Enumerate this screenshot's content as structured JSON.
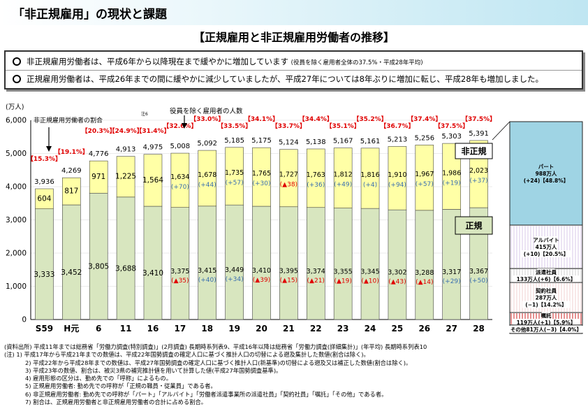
{
  "page_title": "「非正規雇用」の現状と課題",
  "section_title": "【正規雇用と非正規雇用労働者の推移】",
  "summary": [
    {
      "text": "非正規雇用労働者は、平成6年から以降現在まで緩やかに増加しています",
      "note": "(役員を除く雇用者全体の37.5%・平成28年平均)"
    },
    {
      "text": "正規雇用労働者は、平成26年までの間に緩やかに減少していましたが、平成27年については8年ぶりに増加に転じ、平成28年も増加しました。",
      "note": ""
    }
  ],
  "colors": {
    "regular": "#d8e6bf",
    "nonregular": "#ffffa6",
    "red": "#e00000",
    "blue": "#3a6fb0"
  },
  "chart_data": {
    "type": "bar",
    "stacked": true,
    "ylabel": "(万人)",
    "ylim": [
      0,
      6000
    ],
    "yticks": [
      "0",
      "1,000",
      "2,000",
      "3,000",
      "4,000",
      "5,000",
      "6,000"
    ],
    "title": "役員を除く雇用者の人数",
    "note_marker": "注6",
    "categories": [
      "S59",
      "H元",
      "6",
      "11",
      "16",
      "17",
      "18",
      "19",
      "20",
      "21",
      "22",
      "23",
      "24",
      "25",
      "26",
      "27",
      "28"
    ],
    "totals": [
      3936,
      4269,
      4776,
      4913,
      4975,
      5008,
      5092,
      5185,
      5175,
      5124,
      5138,
      5167,
      5161,
      5213,
      5256,
      5303,
      5391
    ],
    "total_labels": [
      "3,936",
      "4,269",
      "4,776",
      "4,913",
      "4,975",
      "5,008",
      "5,092",
      "5,185",
      "5,175",
      "5,124",
      "5,138",
      "5,167",
      "5,161",
      "5,213",
      "5,256",
      "5,303",
      "5,391"
    ],
    "shares": [
      "【15.3%】",
      "【19.1%】",
      "【20.3%】",
      "【24.9%】",
      "【31.4%】",
      "【32.6%】",
      "【33.0%】",
      "【33.5%】",
      "【34.1%】",
      "【33.7%】",
      "【34.4%】",
      "【35.1%】",
      "【35.2%】",
      "【36.7%】",
      "【37.4%】",
      "【37.5%】",
      "【37.5%】"
    ],
    "share_caption": "非正規雇用労働者の割合",
    "series": [
      {
        "name": "正規",
        "values": [
          3333,
          3452,
          3805,
          3688,
          3410,
          3375,
          3415,
          3449,
          3410,
          3395,
          3374,
          3355,
          3345,
          3302,
          3288,
          3317,
          3367
        ],
        "labels": [
          "3,333",
          "3,452",
          "3,805",
          "3,688",
          "3,410",
          "3,375",
          "3,415",
          "3,449",
          "3,410",
          "3,395",
          "3,374",
          "3,355",
          "3,345",
          "3,302",
          "3,288",
          "3,317",
          "3,367"
        ],
        "changes": [
          "",
          "",
          "",
          "",
          "",
          "(▲35)",
          "(+40)",
          "(+34)",
          "(▲39)",
          "(▲15)",
          "(▲21)",
          "(▲19)",
          "(▲10)",
          "(▲43)",
          "(▲14)",
          "(+29)",
          "(+50)"
        ]
      },
      {
        "name": "非正規",
        "values": [
          604,
          817,
          971,
          1225,
          1564,
          1634,
          1678,
          1735,
          1765,
          1727,
          1763,
          1812,
          1816,
          1910,
          1967,
          1986,
          2023
        ],
        "labels": [
          "604",
          "817",
          "971",
          "1,225",
          "1,564",
          "1,634",
          "1,678",
          "1,735",
          "1,765",
          "1,727",
          "1,763",
          "1,812",
          "1,816",
          "1,910",
          "1,967",
          "1,986",
          "2,023"
        ],
        "changes": [
          "",
          "",
          "",
          "",
          "",
          "(+70)",
          "(+44)",
          "(+57)",
          "(+30)",
          "(▲38)",
          "(+36)",
          "(+49)",
          "(+4)",
          "(+94)",
          "(+57)",
          "(+19)",
          "(+37)"
        ]
      }
    ],
    "breakdown": {
      "title": "非正規雇用の内訳",
      "items": [
        {
          "name": "パート",
          "value": 988,
          "text": [
            "パート",
            "988万人",
            "(+24)【48.8%】"
          ],
          "color": "#9fd4e4"
        },
        {
          "name": "アルバイト",
          "value": 415,
          "text": [
            "アルバイト",
            "415万人",
            "(+10)【20.5%】"
          ],
          "color": "#ffffff"
        },
        {
          "name": "派遣社員",
          "value": 133,
          "text": [
            "派遣社員",
            "133万人(+6)【6.6%】"
          ],
          "color": "#ffffff"
        },
        {
          "name": "契約社員",
          "value": 287,
          "text": [
            "契約社員",
            "287万人",
            "(−1)【14.2%】"
          ],
          "color": "#ffffff"
        },
        {
          "name": "嘱託",
          "value": 119,
          "text": [
            "嘱託",
            "119万人(+1)【5.9%】"
          ],
          "color": "#ffffff"
        },
        {
          "name": "その他",
          "value": 81,
          "text": [
            "その他81万人(−3)【4.0%】"
          ],
          "color": "#ffffff"
        }
      ]
    }
  },
  "notes": [
    "(資料出所) 平成11年までは総務省「労働力調査(特別調査)」(2月調査) 長期時系列表9、平成16年以降は総務省「労働力調査(詳細集計)」(年平均) 長期時系列表10",
    "(注) 1) 平成17年から平成21年までの数値は、平成22年国勢調査の確定人口に基づく推計人口の切替による遡及集計した数値(割合は除く)。",
    "2) 平成22年から平成28年までの数値は、平成27年国勢調査の確定人口に基づく推計人口(新基準)の切替による遡及又は補正した数値(割合は除く)。",
    "3) 平成23年の数値、割合は、被災3県の補完推計値を用いて計算した値(平成27年国勢調査基準)。",
    "4) 雇用形態の区分は、勤め先での「呼称」によるもの。",
    "5) 正規雇用労働者: 勤め先での呼称が「正規の職員・従業員」である者。",
    "6) 非正規雇用労働者: 勤め先での呼称が「パート」「アルバイト」「労働者派遣事業所の派遣社員」「契約社員」「嘱託」「その他」である者。",
    "7) 割合は、正規雇用労働者と非正規雇用労働者の合計に占める割合。"
  ]
}
